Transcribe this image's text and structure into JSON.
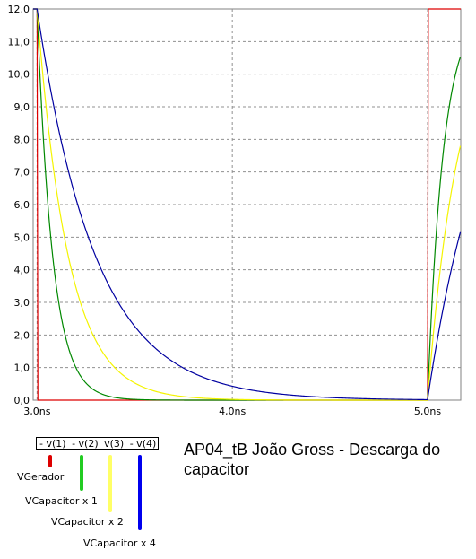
{
  "chart_data": {
    "type": "line",
    "title": "AP04_tB João Gross - Descarga do capacitor",
    "xlabel": "",
    "ylabel": "",
    "xlim": [
      2.98,
      5.17
    ],
    "ylim": [
      0,
      12
    ],
    "grid": true,
    "x_ticks": [
      "3,0ns",
      "4,0ns",
      "5,0ns"
    ],
    "y_ticks": [
      "0,0",
      "1,0",
      "2,0",
      "3,0",
      "4,0",
      "5,0",
      "6,0",
      "7,0",
      "8,0",
      "9,0",
      "10,0",
      "11,0",
      "12,0"
    ],
    "legend_entries": [
      "- v(1)",
      "- v(2)",
      "v(3)",
      "- v(4)"
    ],
    "series": [
      {
        "name": "VGerador",
        "color": "#dd0000",
        "kind": "pulse"
      },
      {
        "name": "VCapacitor x 1",
        "color": "#008800",
        "tau": 0.08
      },
      {
        "name": "VCapacitor x 2",
        "color": "#f4f400",
        "tau": 0.16
      },
      {
        "name": "VCapacitor x 4",
        "color": "#0000a0",
        "tau": 0.3
      }
    ],
    "signal_labels": [
      "VGerador",
      "VCapacitor x 1",
      "VCapacitor x 2",
      "VCapacitor x 4"
    ],
    "marker_colors": [
      "#dd0000",
      "#22cc22",
      "#ffff66",
      "#0000ee"
    ]
  }
}
